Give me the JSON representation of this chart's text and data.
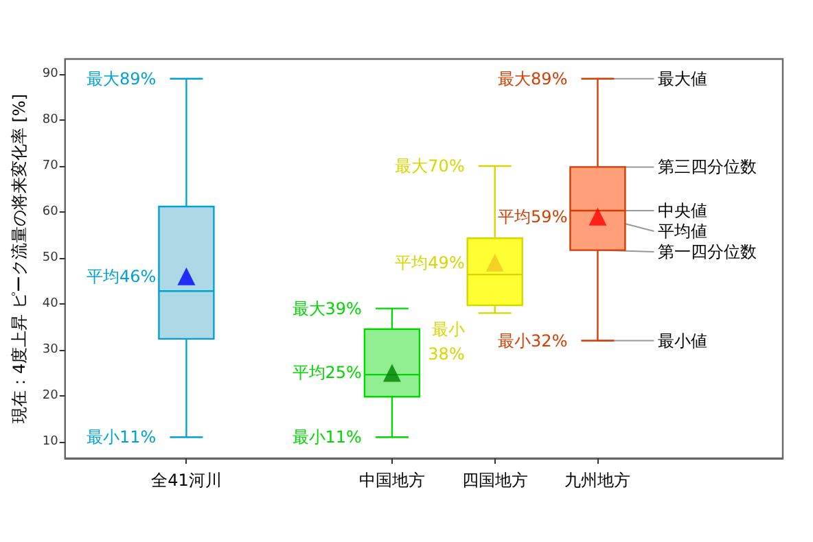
{
  "chart_data": {
    "type": "box",
    "ylabel": "現在：4度上昇 ピーク流量の将来変化率 [%]",
    "categories": [
      "全41河川",
      null,
      "中国地方",
      "四国地方",
      "九州地方"
    ],
    "boxes": [
      {
        "low": 11,
        "q1": 32.4,
        "median": 42.8,
        "q3": 61.2,
        "high": 89
      },
      null,
      {
        "low": 11,
        "q1": 19.8,
        "median": 24.6,
        "q3": 34.5,
        "high": 39
      },
      {
        "low": 38,
        "q1": 39.7,
        "median": 46.4,
        "q3": 54.3,
        "high": 70
      },
      {
        "low": 32,
        "q1": 51.7,
        "median": 60.3,
        "q3": 69.8,
        "high": 89
      }
    ],
    "colors": [
      "#add8e6",
      null,
      "#90ee90",
      "#ffff33",
      "#ffa07a"
    ],
    "series": [
      {
        "type": "scatter",
        "x": [
          "全41河川",
          "中国地方",
          "四国地方",
          "九州地方"
        ],
        "values": [
          46,
          25,
          49,
          59
        ],
        "colors": [
          "#0000ff",
          "#008000",
          "#f2c61f",
          "#ff0000"
        ]
      }
    ],
    "ylim": [
      6.4,
      93.3
    ],
    "yticks": [
      10,
      20,
      30,
      40,
      50,
      60,
      70,
      80,
      90
    ],
    "grid": false,
    "marker": "triangle",
    "annotations": [
      {
        "text": "最大89%",
        "x": "全41河川",
        "y": 89
      },
      {
        "text": "平均46%",
        "x": "全41河川",
        "y": 46
      },
      {
        "text": "最小11%",
        "x": "全41河川",
        "y": 11
      },
      {
        "text": "最大39%",
        "x": "中国地方",
        "y": 39
      },
      {
        "text": "平均25%",
        "x": "中国地方",
        "y": 25
      },
      {
        "text": "最小11%",
        "x": "中国地方",
        "y": 11
      },
      {
        "text": "最大70%",
        "x": "四国地方",
        "y": 70
      },
      {
        "text": "平均49%",
        "x": "四国地方",
        "y": 49
      },
      {
        "text": "最小\n38%",
        "x": "四国地方",
        "y": 38
      },
      {
        "text": "最大89%",
        "x": "九州地方",
        "y": 89
      },
      {
        "text": "平均59%",
        "x": "九州地方",
        "y": 59
      },
      {
        "text": "最小32%",
        "x": "九州地方",
        "y": 32
      },
      {
        "text": "最大値",
        "x": "九州地方",
        "y": 89
      },
      {
        "text": "第三四分位数",
        "x": "九州地方",
        "y": 69.8
      },
      {
        "text": "中央値",
        "x": "九州地方",
        "y": 60.3
      },
      {
        "text": "平均値",
        "x": "九州地方",
        "y": 59
      },
      {
        "text": "第一四分位数",
        "x": "九州地方",
        "y": 51.7
      },
      {
        "text": "最小値",
        "x": "九州地方",
        "y": 32
      }
    ]
  }
}
